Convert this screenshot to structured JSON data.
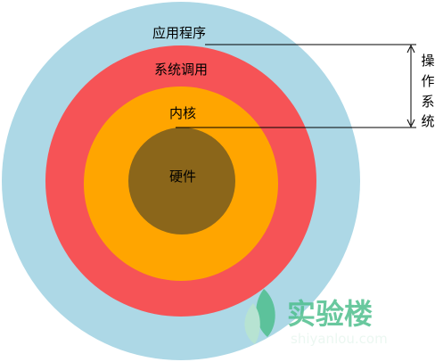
{
  "layers": {
    "application": {
      "label": "应用程序",
      "color": "#add8e6"
    },
    "system_call": {
      "label": "系统调用",
      "color": "#f65356"
    },
    "kernel": {
      "label": "内核",
      "color": "#ffa500"
    },
    "hardware": {
      "label": "硬件",
      "color": "#8b661a"
    }
  },
  "bracket": {
    "chars": [
      "操",
      "作",
      "系",
      "统"
    ]
  },
  "watermark": {
    "name": "实验楼",
    "domain": "shiyanlou.com",
    "color": "#4fbf8e"
  },
  "colors": {
    "line": "#000000"
  }
}
